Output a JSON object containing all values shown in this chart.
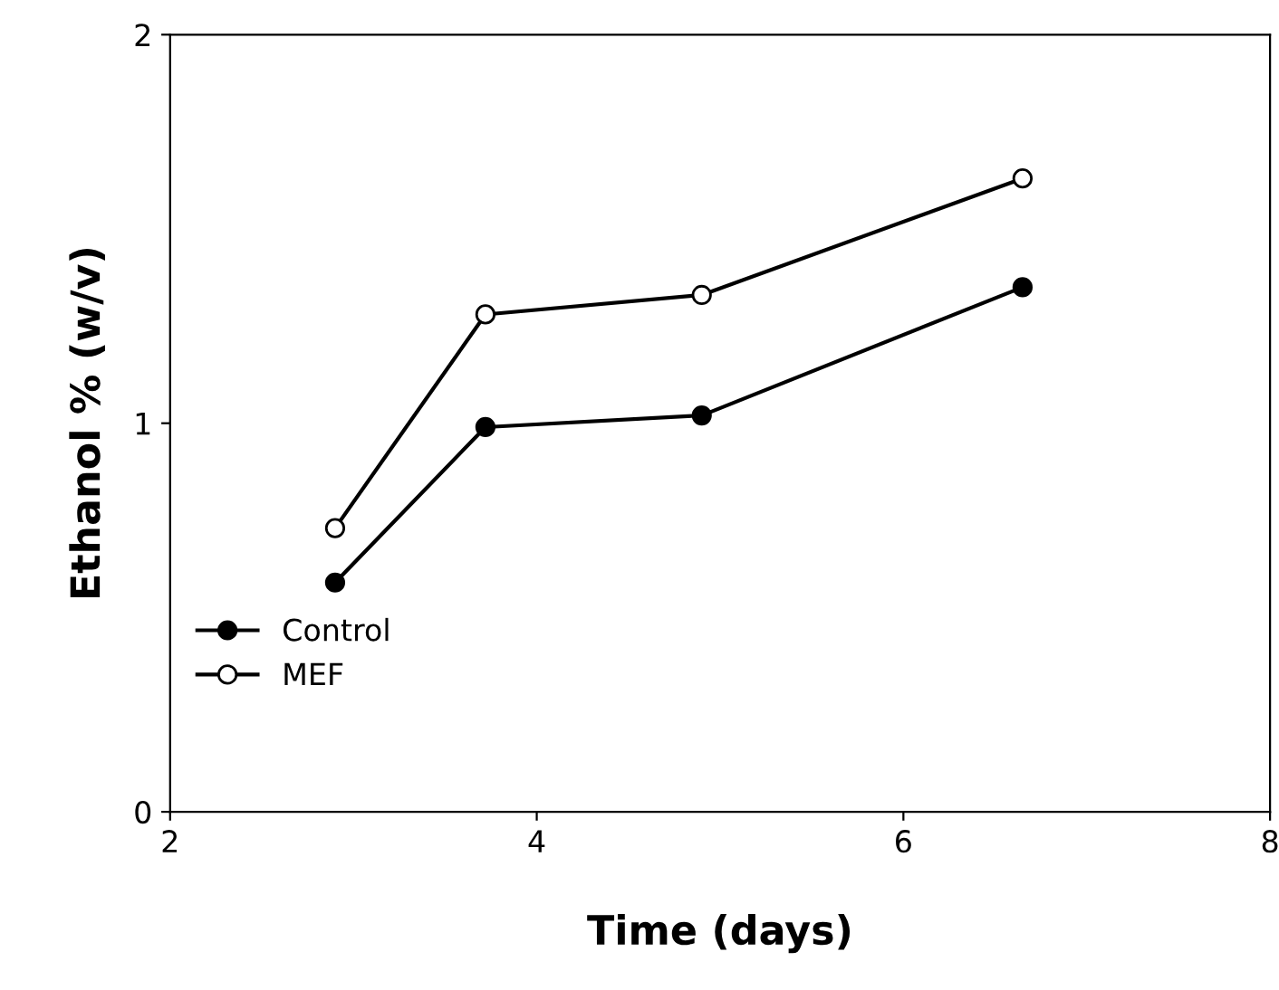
{
  "chart_data": {
    "type": "line",
    "xlabel": "Time (days)",
    "ylabel": "Ethanol % (w/v)",
    "xlim": [
      2,
      8
    ],
    "xticks": [
      2,
      4,
      6,
      8
    ],
    "ylim": [
      0,
      2
    ],
    "yticks": [
      0,
      1,
      2
    ],
    "grid": false,
    "legend": "bottom left",
    "marker": "circle",
    "line_style": "solid",
    "series": [
      {
        "name": "Control",
        "color": "#000000",
        "x": [
          2.9,
          3.72,
          4.9,
          6.65
        ],
        "values": [
          0.59,
          0.99,
          1.02,
          1.35
        ]
      },
      {
        "name": "MEF",
        "color": "#ffffff",
        "x": [
          2.9,
          3.72,
          4.9,
          6.65
        ],
        "values": [
          0.73,
          1.28,
          1.33,
          1.63
        ]
      }
    ]
  }
}
